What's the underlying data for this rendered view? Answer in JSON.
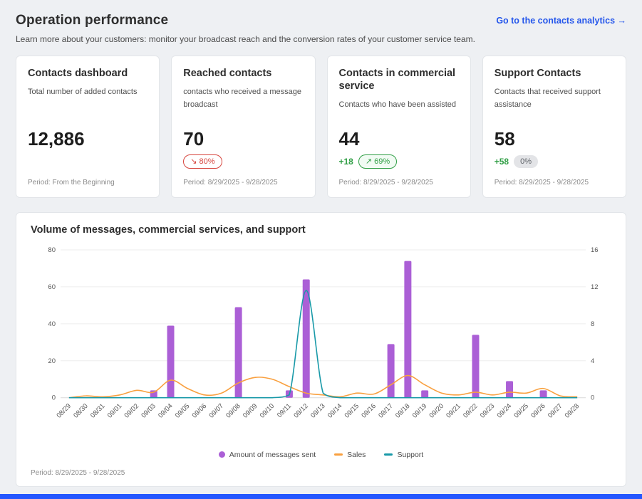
{
  "page": {
    "title": "Operation performance",
    "subtitle": "Learn more about your customers: monitor your broadcast reach and the conversion rates of your customer service team.",
    "link_label": "Go to the contacts analytics →"
  },
  "cards": [
    {
      "title": "Contacts dashboard",
      "description": "Total number of added contacts",
      "value": "12,886",
      "footer": "Period: From the Beginning"
    },
    {
      "title": "Reached contacts",
      "description": "contacts who received a message broadcast",
      "value": "70",
      "badge": "↘ 80%",
      "badge_type": "negative",
      "footer": "Period: 8/29/2025 - 9/28/2025"
    },
    {
      "title": "Contacts in commercial service",
      "description": "Contacts who have been assisted",
      "value": "44",
      "delta": "+18",
      "badge": "↗ 69%",
      "badge_type": "positive",
      "footer": "Period: 8/29/2025 - 9/28/2025"
    },
    {
      "title": "Support Contacts",
      "description": "Contacts that received support assistance",
      "value": "58",
      "delta": "+58",
      "badge": "0%",
      "badge_type": "neutral",
      "footer": "Period: 8/29/2025 - 9/28/2025"
    }
  ],
  "chart_footer": "Period: 8/29/2025 - 9/28/2025",
  "chart_data": {
    "type": "bar",
    "title": "Volume of messages, commercial services, and support",
    "categories": [
      "08/29",
      "08/30",
      "08/31",
      "09/01",
      "09/02",
      "09/03",
      "09/04",
      "09/05",
      "09/06",
      "09/07",
      "09/08",
      "09/09",
      "09/10",
      "09/11",
      "09/12",
      "09/13",
      "09/14",
      "09/15",
      "09/16",
      "09/17",
      "09/18",
      "09/19",
      "09/20",
      "09/21",
      "09/22",
      "09/23",
      "09/24",
      "09/25",
      "09/26",
      "09/27",
      "09/28"
    ],
    "series": [
      {
        "name": "Amount of messages sent",
        "kind": "bar",
        "axis": "left",
        "color": "#ab5fd6",
        "values": [
          0,
          0,
          0,
          0,
          0,
          4,
          39,
          0,
          0,
          0,
          49,
          0,
          0,
          4,
          64,
          0,
          0,
          0,
          0,
          29,
          74,
          4,
          0,
          0,
          34,
          0,
          9,
          0,
          4,
          0,
          0
        ]
      },
      {
        "name": "Sales",
        "kind": "line",
        "axis": "right",
        "color": "#f9a03f",
        "values": [
          0,
          0.2,
          0.1,
          0.3,
          0.8,
          0.6,
          1.9,
          1.0,
          0.3,
          0.5,
          1.6,
          2.2,
          2.0,
          1.2,
          0.5,
          0.3,
          0.1,
          0.5,
          0.4,
          1.4,
          2.4,
          1.4,
          0.5,
          0.3,
          0.6,
          0.3,
          0.6,
          0.5,
          1.0,
          0.2,
          0.1
        ]
      },
      {
        "name": "Support",
        "kind": "line",
        "axis": "right",
        "color": "#1899a8",
        "values": [
          0,
          0,
          0,
          0,
          0,
          0,
          0,
          0,
          0,
          0,
          0,
          0,
          0,
          0.3,
          11.6,
          0.5,
          0,
          0,
          0,
          0,
          0,
          0,
          0,
          0,
          0,
          0,
          0,
          0,
          0,
          0,
          0
        ]
      }
    ],
    "left_axis": {
      "min": 0,
      "max": 80,
      "ticks": [
        0,
        20,
        40,
        60,
        80
      ]
    },
    "right_axis": {
      "min": 0,
      "max": 16,
      "ticks": [
        0,
        4,
        8,
        12,
        16
      ]
    },
    "grid": true,
    "legend_position": "bottom"
  }
}
